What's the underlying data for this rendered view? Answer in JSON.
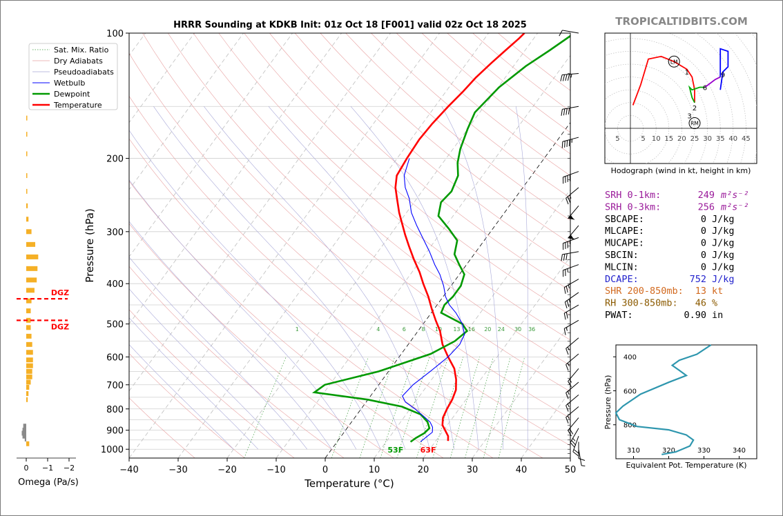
{
  "chart_data": [
    {
      "type": "line",
      "name": "skew-t",
      "title": "HRRR Sounding at KDKB Init: 01z Oct 18 [F001] valid 02z Oct 18 2025",
      "xlabel": "Temperature (°C)",
      "ylabel": "Pressure (hPa)",
      "xlim": [
        -40,
        50
      ],
      "ylim": [
        1050,
        100
      ],
      "y_scale": "log",
      "x_ticks": [
        "−40",
        "−30",
        "−20",
        "−10",
        "0",
        "10",
        "20",
        "30",
        "40",
        "50"
      ],
      "y_ticks": [
        "100",
        "200",
        "300",
        "400",
        "500",
        "600",
        "700",
        "800",
        "900",
        "1000"
      ],
      "mixing_ratio_labels": [
        "1",
        "4",
        "6",
        "8",
        "10",
        "13",
        "16",
        "20",
        "24",
        "30",
        "36"
      ],
      "grid": true,
      "legend_position": "upper-left",
      "legend": [
        "Sat. Mix. Ratio",
        "Dry Adiabats",
        "Pseudoadiabats",
        "Wetbulb",
        "Dewpoint",
        "Temperature"
      ],
      "series": [
        {
          "name": "Temperature",
          "color": "#ff0000",
          "points": [
            [
              22.5,
              955
            ],
            [
              21.8,
              930
            ],
            [
              20.3,
              900
            ],
            [
              19,
              875
            ],
            [
              18,
              840
            ],
            [
              17.5,
              800
            ],
            [
              17.2,
              760
            ],
            [
              16.5,
              720
            ],
            [
              15,
              680
            ],
            [
              13,
              640
            ],
            [
              10,
              600
            ],
            [
              7,
              560
            ],
            [
              4.5,
              520
            ],
            [
              2,
              490
            ],
            [
              -0.5,
              460
            ],
            [
              -3,
              430
            ],
            [
              -6,
              400
            ],
            [
              -8.5,
              375
            ],
            [
              -11.5,
              350
            ],
            [
              -14.5,
              325
            ],
            [
              -17,
              305
            ],
            [
              -19.5,
              285
            ],
            [
              -21.5,
              270
            ],
            [
              -24,
              250
            ],
            [
              -26,
              235
            ],
            [
              -27.5,
              220
            ],
            [
              -28,
              200
            ],
            [
              -28.3,
              180
            ],
            [
              -28,
              165
            ],
            [
              -27.3,
              150
            ],
            [
              -26.5,
              138
            ],
            [
              -26,
              128
            ],
            [
              -25,
              118
            ],
            [
              -24,
              110
            ],
            [
              -23,
              103
            ],
            [
              -22.7,
              100
            ]
          ]
        },
        {
          "name": "Dewpoint",
          "color": "#009900",
          "points": [
            [
              15,
              960
            ],
            [
              15.5,
              940
            ],
            [
              16.5,
              915
            ],
            [
              16.8,
              890
            ],
            [
              15.5,
              860
            ],
            [
              13,
              825
            ],
            [
              8,
              790
            ],
            [
              0,
              760
            ],
            [
              -12,
              730
            ],
            [
              -11,
              700
            ],
            [
              -2,
              650
            ],
            [
              6,
              590
            ],
            [
              9,
              550
            ],
            [
              10,
              520
            ],
            [
              8,
              500
            ],
            [
              2,
              470
            ],
            [
              1.5,
              450
            ],
            [
              2,
              430
            ],
            [
              2,
              405
            ],
            [
              1,
              380
            ],
            [
              -1.5,
              360
            ],
            [
              -4,
              340
            ],
            [
              -5.5,
              315
            ],
            [
              -9,
              295
            ],
            [
              -13,
              275
            ],
            [
              -14.5,
              255
            ],
            [
              -14,
              240
            ],
            [
              -15,
              220
            ],
            [
              -17,
              205
            ],
            [
              -18.5,
              190
            ],
            [
              -20,
              170
            ],
            [
              -21,
              155
            ],
            [
              -19.8,
              135
            ],
            [
              -17.5,
              120
            ],
            [
              -15,
              110
            ],
            [
              -12.5,
              100
            ]
          ]
        },
        {
          "name": "Wetbulb",
          "color": "#0000ff",
          "points": [
            [
              17,
              960
            ],
            [
              17.5,
              935
            ],
            [
              18,
              910
            ],
            [
              17.3,
              885
            ],
            [
              16,
              860
            ],
            [
              14,
              835
            ],
            [
              11,
              800
            ],
            [
              8,
              770
            ],
            [
              6.5,
              745
            ],
            [
              7,
              700
            ],
            [
              8.5,
              650
            ],
            [
              10,
              600
            ],
            [
              10.5,
              560
            ],
            [
              10,
              530
            ],
            [
              8,
              500
            ],
            [
              5,
              470
            ],
            [
              2.5,
              450
            ],
            [
              0.5,
              430
            ],
            [
              -1.5,
              405
            ],
            [
              -4,
              380
            ],
            [
              -6.5,
              360
            ],
            [
              -9.5,
              335
            ],
            [
              -13,
              310
            ],
            [
              -16,
              290
            ],
            [
              -19,
              270
            ],
            [
              -21.5,
              250
            ],
            [
              -24,
              235
            ],
            [
              -26,
              220
            ],
            [
              -27.5,
              200
            ]
          ]
        }
      ],
      "surface_labels": [
        {
          "text": "53F",
          "color": "#009900"
        },
        {
          "text": "63F",
          "color": "#ff0000"
        }
      ],
      "wind_barbs": [
        {
          "p": 100,
          "dir": 280,
          "spd": 10
        },
        {
          "p": 125,
          "dir": 265,
          "spd": 45
        },
        {
          "p": 150,
          "dir": 260,
          "spd": 40
        },
        {
          "p": 178,
          "dir": 255,
          "spd": 45
        },
        {
          "p": 215,
          "dir": 250,
          "spd": 40
        },
        {
          "p": 235,
          "dir": 230,
          "spd": 25
        },
        {
          "p": 260,
          "dir": 220,
          "spd": 55
        },
        {
          "p": 290,
          "dir": 220,
          "spd": 55
        },
        {
          "p": 310,
          "dir": 250,
          "spd": 35
        },
        {
          "p": 335,
          "dir": 260,
          "spd": 30
        },
        {
          "p": 360,
          "dir": 250,
          "spd": 25
        },
        {
          "p": 390,
          "dir": 240,
          "spd": 25
        },
        {
          "p": 420,
          "dir": 235,
          "spd": 25
        },
        {
          "p": 450,
          "dir": 240,
          "spd": 20
        },
        {
          "p": 490,
          "dir": 240,
          "spd": 15
        },
        {
          "p": 540,
          "dir": 230,
          "spd": 15
        },
        {
          "p": 590,
          "dir": 230,
          "spd": 15
        },
        {
          "p": 640,
          "dir": 220,
          "spd": 15
        },
        {
          "p": 690,
          "dir": 230,
          "spd": 15
        },
        {
          "p": 740,
          "dir": 230,
          "spd": 15
        },
        {
          "p": 790,
          "dir": 230,
          "spd": 15
        },
        {
          "p": 840,
          "dir": 220,
          "spd": 20
        },
        {
          "p": 890,
          "dir": 210,
          "spd": 25
        },
        {
          "p": 930,
          "dir": 200,
          "spd": 20
        },
        {
          "p": 960,
          "dir": 180,
          "spd": 10
        },
        {
          "p": 1000,
          "dir": 170,
          "spd": 5
        }
      ]
    },
    {
      "type": "bar",
      "name": "omega",
      "xlabel": "Omega (Pa/s)",
      "x_ticks": [
        "0",
        "−1",
        "−2"
      ],
      "dgz_label": "DGZ",
      "dgz_bounds_hpa": [
        435,
        490
      ],
      "bars": [
        {
          "p": 970,
          "v": 0.2
        },
        {
          "p": 945,
          "v": -0.1
        },
        {
          "p": 930,
          "v": -0.25
        },
        {
          "p": 915,
          "v": -0.3
        },
        {
          "p": 900,
          "v": -0.25
        },
        {
          "p": 880,
          "v": -0.2
        },
        {
          "p": 760,
          "v": 0.1
        },
        {
          "p": 735,
          "v": 0.15
        },
        {
          "p": 710,
          "v": 0.2
        },
        {
          "p": 690,
          "v": 0.3
        },
        {
          "p": 670,
          "v": 0.4
        },
        {
          "p": 650,
          "v": 0.4
        },
        {
          "p": 630,
          "v": 0.45
        },
        {
          "p": 610,
          "v": 0.45
        },
        {
          "p": 585,
          "v": 0.45
        },
        {
          "p": 560,
          "v": 0.4
        },
        {
          "p": 535,
          "v": 0.35
        },
        {
          "p": 510,
          "v": 0.3
        },
        {
          "p": 490,
          "v": 0.3
        },
        {
          "p": 465,
          "v": 0.3
        },
        {
          "p": 440,
          "v": 0.35
        },
        {
          "p": 415,
          "v": 0.55
        },
        {
          "p": 392,
          "v": 0.7
        },
        {
          "p": 368,
          "v": 0.75
        },
        {
          "p": 345,
          "v": 0.8
        },
        {
          "p": 322,
          "v": 0.6
        },
        {
          "p": 300,
          "v": 0.35
        },
        {
          "p": 280,
          "v": 0.15
        },
        {
          "p": 260,
          "v": 0.1
        },
        {
          "p": 240,
          "v": 0.05
        },
        {
          "p": 220,
          "v": 0.05
        },
        {
          "p": 195,
          "v": 0.05
        },
        {
          "p": 175,
          "v": 0.05
        },
        {
          "p": 160,
          "v": 0.05
        }
      ]
    },
    {
      "type": "line",
      "name": "hodograph",
      "xlabel": "Hodograph (wind in kt, height in km)",
      "x_ticks": [
        "5",
        "5",
        "10",
        "15",
        "20",
        "25",
        "30",
        "35",
        "40",
        "45"
      ],
      "xlim": [
        -10,
        50
      ],
      "ylim": [
        -12,
        37
      ],
      "markers": [
        {
          "text": "1",
          "u": 22,
          "v": 22
        },
        {
          "text": "2",
          "u": 25,
          "v": 8
        },
        {
          "text": "3",
          "u": 23,
          "v": 5
        },
        {
          "text": "6",
          "u": 29,
          "v": 16
        },
        {
          "text": "9",
          "u": 36,
          "v": 21
        }
      ],
      "storm_motion": [
        {
          "text": "LM",
          "u": 17,
          "v": 26
        },
        {
          "text": "RM",
          "u": 25,
          "v": 2
        }
      ],
      "segments": [
        {
          "color": "#ff0000",
          "points": [
            [
              1,
              9
            ],
            [
              4,
              17
            ],
            [
              7,
              27
            ],
            [
              12,
              28
            ],
            [
              17,
              26
            ],
            [
              22,
              23
            ],
            [
              24,
              20
            ],
            [
              25,
              15
            ],
            [
              25,
              10
            ]
          ]
        },
        {
          "color": "#00aa00",
          "points": [
            [
              25,
              10
            ],
            [
              24,
              12
            ],
            [
              23,
              16
            ],
            [
              24,
              15
            ],
            [
              27,
              16
            ],
            [
              29,
              16
            ]
          ]
        },
        {
          "color": "#9900cc",
          "points": [
            [
              29,
              16
            ],
            [
              33,
              19
            ],
            [
              35,
              20
            ]
          ]
        },
        {
          "color": "#0000ff",
          "points": [
            [
              35,
              20
            ],
            [
              35,
              25
            ],
            [
              35,
              31
            ],
            [
              38,
              30
            ],
            [
              38,
              24
            ],
            [
              36,
              22
            ],
            [
              35,
              15
            ]
          ]
        }
      ]
    },
    {
      "type": "line",
      "name": "theta-e",
      "xlabel": "Equivalent Pot. Temperature (K)",
      "ylabel": "Pressure (hPa)",
      "xlim": [
        305,
        345
      ],
      "ylim": [
        1000,
        330
      ],
      "x_ticks": [
        "310",
        "320",
        "330",
        "340"
      ],
      "y_ticks": [
        "400",
        "600",
        "800"
      ],
      "series": [
        {
          "name": "theta-e",
          "color": "#2e96ae",
          "points": [
            [
              332,
              330
            ],
            [
              328,
              385
            ],
            [
              323,
              420
            ],
            [
              321,
              450
            ],
            [
              323,
              480
            ],
            [
              325,
              510
            ],
            [
              320,
              550
            ],
            [
              312,
              620
            ],
            [
              307,
              690
            ],
            [
              305,
              730
            ],
            [
              306,
              770
            ],
            [
              311,
              810
            ],
            [
              320,
              830
            ],
            [
              325,
              860
            ],
            [
              327,
              890
            ],
            [
              326,
              925
            ],
            [
              322,
              960
            ],
            [
              318,
              975
            ]
          ]
        }
      ]
    }
  ],
  "brand": "TROPICALTIDBITS.COM",
  "indices": [
    {
      "label": "SRH 0-1km:",
      "value": "249",
      "unit": "m²s⁻²",
      "color": "#9a1b9a"
    },
    {
      "label": "SRH 0-3km:",
      "value": "256",
      "unit": "m²s⁻²",
      "color": "#9a1b9a"
    },
    {
      "label": "SBCAPE:",
      "value": "0",
      "unit": "J/kg",
      "color": "#000000"
    },
    {
      "label": "MLCAPE:",
      "value": "0",
      "unit": "J/kg",
      "color": "#000000"
    },
    {
      "label": "MUCAPE:",
      "value": "0",
      "unit": "J/kg",
      "color": "#000000"
    },
    {
      "label": "SBCIN:",
      "value": "0",
      "unit": "J/kg",
      "color": "#000000"
    },
    {
      "label": "MLCIN:",
      "value": "0",
      "unit": "J/kg",
      "color": "#000000"
    },
    {
      "label": "DCAPE:",
      "value": "752",
      "unit": "J/kg",
      "color": "#2222cc"
    },
    {
      "label": "SHR 200-850mb:",
      "value": "13",
      "unit": "kt",
      "color": "#d2691e"
    },
    {
      "label": "RH 300-850mb:",
      "value": "46",
      "unit": "%",
      "color": "#8b5a00"
    },
    {
      "label": "PWAT:",
      "value": "0.90",
      "unit": "in",
      "color": "#000000"
    }
  ]
}
